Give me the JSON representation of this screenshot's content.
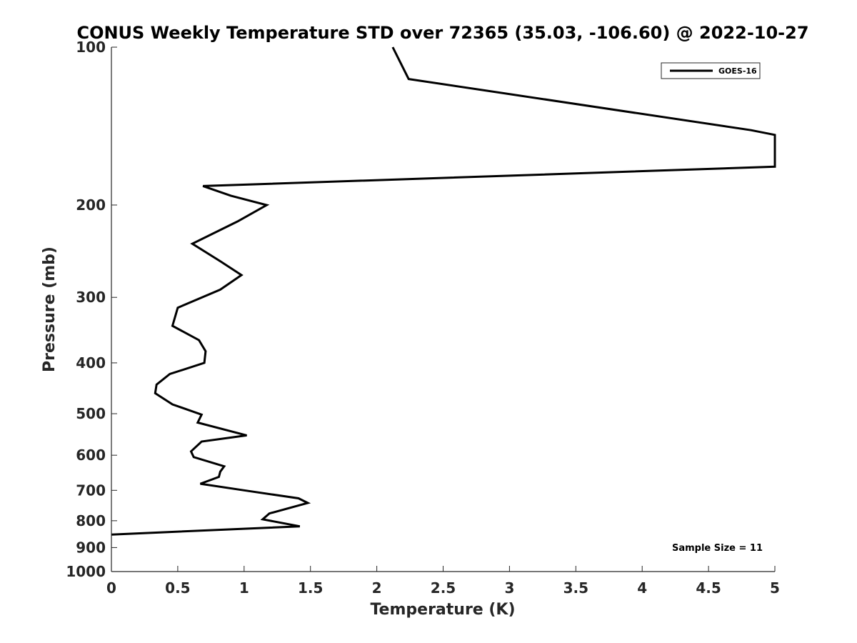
{
  "chart_data": {
    "type": "line",
    "title": "CONUS Weekly Temperature STD over 72365 (35.03, -106.60) @ 2022-10-27",
    "xlabel": "Temperature (K)",
    "ylabel": "Pressure (mb)",
    "xlim": [
      0,
      5
    ],
    "ylim": [
      100,
      1000
    ],
    "y_scale": "log",
    "y_reversed": true,
    "x_ticks": [
      "0",
      "0.5",
      "1",
      "1.5",
      "2",
      "2.5",
      "3",
      "3.5",
      "4",
      "4.5",
      "5"
    ],
    "y_ticks": [
      "100",
      "200",
      "300",
      "400",
      "500",
      "600",
      "700",
      "800",
      "900",
      "1000"
    ],
    "legend_position": "top-right",
    "annotation": "Sample Size = 11",
    "line_color": "#000000",
    "series": [
      {
        "name": "GOES-16",
        "points": [
          {
            "x": 2.12,
            "p": 100
          },
          {
            "x": 2.24,
            "p": 115
          },
          {
            "x": 4.82,
            "p": 144
          },
          {
            "x": 5.0,
            "p": 147
          },
          {
            "x": 5.0,
            "p": 169
          },
          {
            "x": 0.69,
            "p": 184
          },
          {
            "x": 0.9,
            "p": 192
          },
          {
            "x": 1.17,
            "p": 200
          },
          {
            "x": 0.95,
            "p": 215
          },
          {
            "x": 0.61,
            "p": 237
          },
          {
            "x": 0.82,
            "p": 256
          },
          {
            "x": 0.98,
            "p": 272
          },
          {
            "x": 0.82,
            "p": 290
          },
          {
            "x": 0.5,
            "p": 314
          },
          {
            "x": 0.46,
            "p": 340
          },
          {
            "x": 0.66,
            "p": 362
          },
          {
            "x": 0.71,
            "p": 380
          },
          {
            "x": 0.7,
            "p": 400
          },
          {
            "x": 0.44,
            "p": 420
          },
          {
            "x": 0.34,
            "p": 440
          },
          {
            "x": 0.33,
            "p": 457
          },
          {
            "x": 0.46,
            "p": 480
          },
          {
            "x": 0.68,
            "p": 502
          },
          {
            "x": 0.65,
            "p": 520
          },
          {
            "x": 1.02,
            "p": 550
          },
          {
            "x": 0.68,
            "p": 565
          },
          {
            "x": 0.6,
            "p": 590
          },
          {
            "x": 0.62,
            "p": 605
          },
          {
            "x": 0.85,
            "p": 630
          },
          {
            "x": 0.82,
            "p": 645
          },
          {
            "x": 0.81,
            "p": 660
          },
          {
            "x": 0.67,
            "p": 680
          },
          {
            "x": 1.0,
            "p": 700
          },
          {
            "x": 1.41,
            "p": 725
          },
          {
            "x": 1.48,
            "p": 740
          },
          {
            "x": 1.19,
            "p": 775
          },
          {
            "x": 1.14,
            "p": 795
          },
          {
            "x": 1.42,
            "p": 820
          },
          {
            "x": 0.0,
            "p": 850
          }
        ]
      }
    ]
  }
}
